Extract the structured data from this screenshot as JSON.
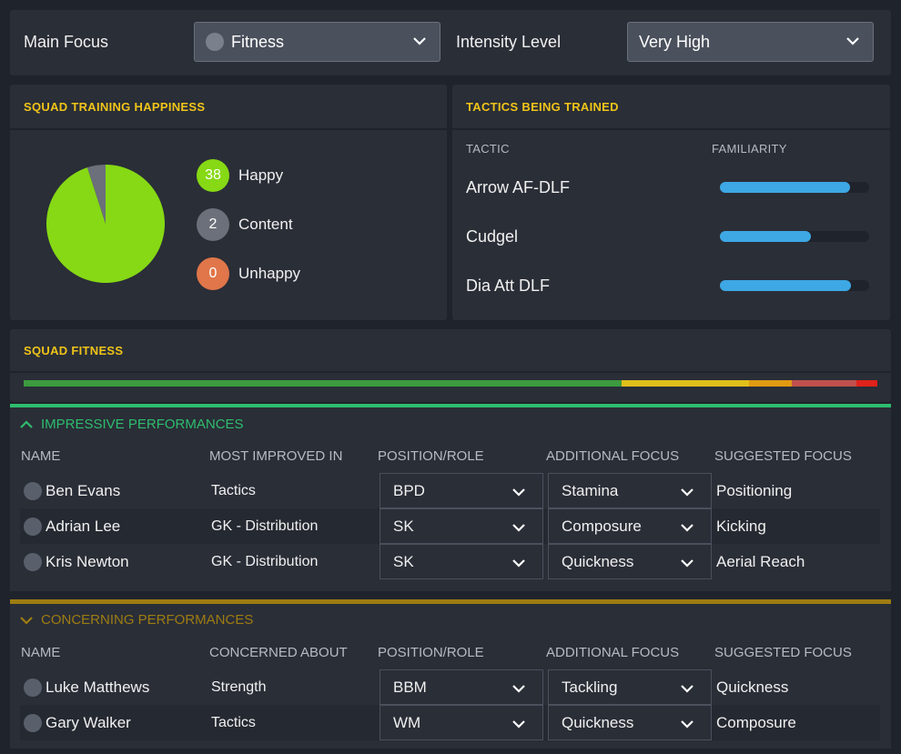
{
  "focus": {
    "main_label": "Main Focus",
    "main_value": "Fitness",
    "intensity_label": "Intensity Level",
    "intensity_value": "Very High"
  },
  "happiness": {
    "title": "SQUAD TRAINING HAPPINESS",
    "chart_data": {
      "type": "pie",
      "categories": [
        "Happy",
        "Content",
        "Unhappy"
      ],
      "values": [
        38,
        2,
        0
      ],
      "colors": [
        "#86d914",
        "#6b707a",
        "#e0764a"
      ]
    },
    "items": [
      {
        "count": "38",
        "label": "Happy",
        "color": "#86d914"
      },
      {
        "count": "2",
        "label": "Content",
        "color": "#6b707a"
      },
      {
        "count": "0",
        "label": "Unhappy",
        "color": "#e0764a"
      }
    ]
  },
  "tactics": {
    "title": "TACTICS BEING TRAINED",
    "col_tactic": "TACTIC",
    "col_familiarity": "FAMILIARITY",
    "rows": [
      {
        "name": "Arrow AF-DLF",
        "familiarity": 0.87
      },
      {
        "name": "Cudgel",
        "familiarity": 0.61
      },
      {
        "name": "Dia Att DLF",
        "familiarity": 0.88
      }
    ]
  },
  "fitness": {
    "title": "SQUAD FITNESS",
    "segments": [
      {
        "fraction": 0.7,
        "color": "#3c9a3f"
      },
      {
        "fraction": 0.15,
        "color": "#e0c01a"
      },
      {
        "fraction": 0.05,
        "color": "#e09a12"
      },
      {
        "fraction": 0.075,
        "color": "#c0504d"
      },
      {
        "fraction": 0.025,
        "color": "#e0221a"
      }
    ]
  },
  "impressive": {
    "title": "IMPRESSIVE PERFORMANCES",
    "accent": "#2ebd6e",
    "headers": [
      "NAME",
      "MOST IMPROVED IN",
      "POSITION/ROLE",
      "ADDITIONAL FOCUS",
      "SUGGESTED FOCUS"
    ],
    "rows": [
      {
        "name": "Ben Evans",
        "reason": "Tactics",
        "role": "BPD",
        "additional": "Stamina",
        "suggested": "Positioning"
      },
      {
        "name": "Adrian Lee",
        "reason": "GK - Distribution",
        "role": "SK",
        "additional": "Composure",
        "suggested": "Kicking"
      },
      {
        "name": "Kris Newton",
        "reason": "GK - Distribution",
        "role": "SK",
        "additional": "Quickness",
        "suggested": "Aerial Reach"
      }
    ]
  },
  "concerning": {
    "title": "CONCERNING PERFORMANCES",
    "accent": "#9e7c12",
    "headers": [
      "NAME",
      "CONCERNED ABOUT",
      "POSITION/ROLE",
      "ADDITIONAL FOCUS",
      "SUGGESTED FOCUS"
    ],
    "rows": [
      {
        "name": "Luke Matthews",
        "reason": "Strength",
        "role": "BBM",
        "additional": "Tackling",
        "suggested": "Quickness"
      },
      {
        "name": "Gary Walker",
        "reason": "Tactics",
        "role": "WM",
        "additional": "Quickness",
        "suggested": "Composure"
      }
    ]
  }
}
